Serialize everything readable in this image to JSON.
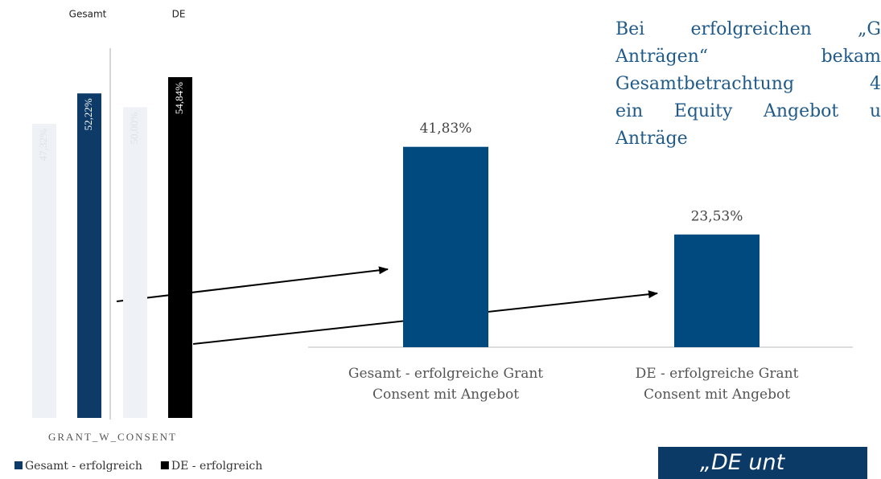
{
  "chart_data": [
    {
      "type": "bar",
      "categories": [
        "Gesamt",
        "DE"
      ],
      "x_label": "GRANT_W_CONSENT",
      "ylim": [
        0,
        56
      ],
      "series": [
        {
          "color": "#eef1f5",
          "values": [
            47.32,
            50.0
          ],
          "value_labels": [
            "47,32%",
            "50,00%"
          ]
        },
        {
          "name": "Gesamt - erfolgreich",
          "color": "#0d3a66",
          "values": [
            52.22,
            null
          ],
          "value_labels": [
            "52,22%",
            null
          ]
        },
        {
          "name": "DE - erfolgreich",
          "color": "#000000",
          "values": [
            null,
            54.84
          ],
          "value_labels": [
            null,
            "54,84%"
          ]
        }
      ]
    },
    {
      "type": "bar",
      "categories": [
        "Gesamt - erfolgreiche Grant Consent mit Angebot",
        "DE - erfolgreiche Grant Consent mit Angebot"
      ],
      "values": [
        41.83,
        23.53
      ],
      "value_labels": [
        "41,83%",
        "23,53%"
      ],
      "color": "#004a7f",
      "ylim": [
        0,
        50
      ]
    }
  ],
  "text_lines": [
    "Bei erfolgreichen „G",
    "Anträgen“ bekam",
    "Gesamtbetrachtung 4",
    "ein Equity Angebot u",
    "Anträge"
  ],
  "banner": "„DE unt"
}
